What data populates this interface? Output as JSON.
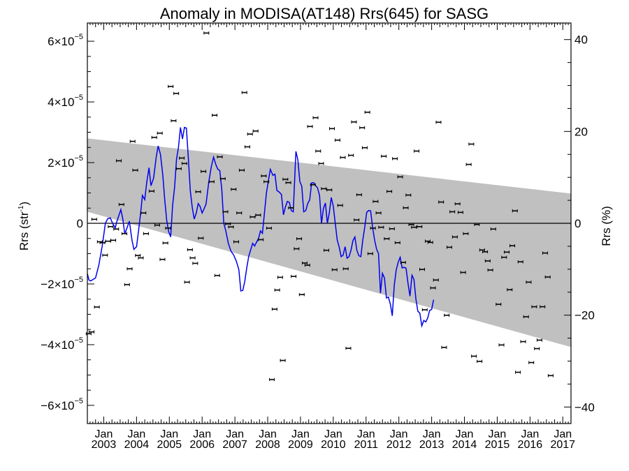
{
  "chart_data": {
    "type": "scatter",
    "title": "Anomaly in MODISA(AT148) Rrs(645) for SASG",
    "ylabel_left": "Rrs (str",
    "ylabel_left_sup": "-1",
    "ylabel_left_end": ")",
    "ylabel_right": "Rrs (%)",
    "grid": false,
    "x_range": [
      2002.5,
      2017.25
    ],
    "y_range_e5": [
      -6.6,
      6.6
    ],
    "y_right_range": [
      -43.6,
      43.6
    ],
    "y_ticks_left": [
      {
        "value": 6,
        "mantissa": "6×10",
        "exp": "−5"
      },
      {
        "value": 4,
        "mantissa": "4×10",
        "exp": "−5"
      },
      {
        "value": 2,
        "mantissa": "2×10",
        "exp": "−5"
      },
      {
        "value": 0,
        "mantissa": "0",
        "exp": ""
      },
      {
        "value": -2,
        "mantissa": "−2×10",
        "exp": "−5"
      },
      {
        "value": -4,
        "mantissa": "−4×10",
        "exp": "−5"
      },
      {
        "value": -6,
        "mantissa": "−6×10",
        "exp": "−5"
      }
    ],
    "y_ticks_right": [
      {
        "value": 40,
        "label": "40"
      },
      {
        "value": 20,
        "label": "20"
      },
      {
        "value": 0,
        "label": "0"
      },
      {
        "value": -20,
        "label": "−20"
      },
      {
        "value": -40,
        "label": "−40"
      }
    ],
    "x_ticks": [
      {
        "value": 2003,
        "month": "Jan",
        "year": "2003"
      },
      {
        "value": 2004,
        "month": "Jan",
        "year": "2004"
      },
      {
        "value": 2005,
        "month": "Jan",
        "year": "2005"
      },
      {
        "value": 2006,
        "month": "Jan",
        "year": "2006"
      },
      {
        "value": 2007,
        "month": "Jan",
        "year": "2007"
      },
      {
        "value": 2008,
        "month": "Jan",
        "year": "2008"
      },
      {
        "value": 2009,
        "month": "Jan",
        "year": "2009"
      },
      {
        "value": 2010,
        "month": "Jan",
        "year": "2010"
      },
      {
        "value": 2011,
        "month": "Jan",
        "year": "2011"
      },
      {
        "value": 2012,
        "month": "Jan",
        "year": "2012"
      },
      {
        "value": 2013,
        "month": "Jan",
        "year": "2013"
      },
      {
        "value": 2014,
        "month": "Jan",
        "year": "2014"
      },
      {
        "value": 2015,
        "month": "Jan",
        "year": "2015"
      },
      {
        "value": 2016,
        "month": "Jan",
        "year": "2016"
      },
      {
        "value": 2017,
        "month": "Jan",
        "year": "2017"
      }
    ],
    "band": {
      "upper": [
        [
          2002.5,
          2.8
        ],
        [
          2017.25,
          0.98
        ]
      ],
      "lower": [
        [
          2002.5,
          0.38
        ],
        [
          2017.25,
          -4.08
        ]
      ]
    },
    "colors": {
      "line": "#0000ee",
      "band": "#c0c0c0",
      "points": "#000000",
      "zero": "#000000"
    },
    "points_e5": [
      [
        2002.54,
        -3.64
      ],
      [
        2002.63,
        -3.58
      ],
      [
        2002.71,
        0.13
      ],
      [
        2002.79,
        -2.76
      ],
      [
        2002.88,
        -0.61
      ],
      [
        2002.96,
        -0.64
      ],
      [
        2003.04,
        -1.05
      ],
      [
        2003.13,
        -0.59
      ],
      [
        2003.21,
        -0.11
      ],
      [
        2003.29,
        -0.56
      ],
      [
        2003.38,
        -0.19
      ],
      [
        2003.46,
        2.06
      ],
      [
        2003.54,
        0.62
      ],
      [
        2003.63,
        -0.34
      ],
      [
        2003.71,
        -2.02
      ],
      [
        2003.79,
        -1.5
      ],
      [
        2003.88,
        2.7
      ],
      [
        2003.96,
        1.75
      ],
      [
        2004.04,
        -1.06
      ],
      [
        2004.13,
        -1.14
      ],
      [
        2004.21,
        0.34
      ],
      [
        2004.29,
        -0.34
      ],
      [
        2004.46,
        1.06
      ],
      [
        2004.54,
        2.83
      ],
      [
        2004.63,
        -0.06
      ],
      [
        2004.71,
        2.97
      ],
      [
        2004.79,
        -1.19
      ],
      [
        2004.88,
        -0.65
      ],
      [
        2004.96,
        -0.16
      ],
      [
        2005.04,
        4.51
      ],
      [
        2005.13,
        3.38
      ],
      [
        2005.21,
        4.28
      ],
      [
        2005.29,
        1.8
      ],
      [
        2005.38,
        2.15
      ],
      [
        2005.46,
        1.97
      ],
      [
        2005.54,
        -1.94
      ],
      [
        2005.63,
        -0.87
      ],
      [
        2005.71,
        -1.14
      ],
      [
        2005.79,
        -1.32
      ],
      [
        2005.88,
        1.04
      ],
      [
        2005.96,
        -0.49
      ],
      [
        2006.04,
        1.71
      ],
      [
        2006.13,
        6.27
      ],
      [
        2006.29,
        1.37
      ],
      [
        2006.38,
        3.56
      ],
      [
        2006.46,
        -1.72
      ],
      [
        2006.54,
        2.19
      ],
      [
        2006.63,
        1.47
      ],
      [
        2006.71,
        0.38
      ],
      [
        2006.79,
        -0.02
      ],
      [
        2006.88,
        -0.12
      ],
      [
        2006.96,
        1.12
      ],
      [
        2007.04,
        -0.61
      ],
      [
        2007.13,
        0.34
      ],
      [
        2007.21,
        1.75
      ],
      [
        2007.29,
        4.31
      ],
      [
        2007.38,
        2.52
      ],
      [
        2007.46,
        2.94
      ],
      [
        2007.54,
        0.21
      ],
      [
        2007.63,
        3.04
      ],
      [
        2007.71,
        0.27
      ],
      [
        2007.79,
        -0.54
      ],
      [
        2007.88,
        1.56
      ],
      [
        2007.96,
        1.37
      ],
      [
        2008.04,
        -0.16
      ],
      [
        2008.13,
        -5.15
      ],
      [
        2008.21,
        -2.83
      ],
      [
        2008.29,
        -2.2
      ],
      [
        2008.38,
        -1.78
      ],
      [
        2008.46,
        -4.52
      ],
      [
        2008.54,
        1.45
      ],
      [
        2008.63,
        1.34
      ],
      [
        2008.71,
        0.51
      ],
      [
        2008.79,
        -1.75
      ],
      [
        2008.88,
        -0.84
      ],
      [
        2008.96,
        -0.51
      ],
      [
        2009.04,
        -2.35
      ],
      [
        2009.13,
        -1.31
      ],
      [
        2009.21,
        -1.38
      ],
      [
        2009.29,
        3.19
      ],
      [
        2009.38,
        1.27
      ],
      [
        2009.46,
        3.48
      ],
      [
        2009.54,
        2.38
      ],
      [
        2009.63,
        1.97
      ],
      [
        2009.71,
        1.14
      ],
      [
        2009.79,
        -0.89
      ],
      [
        2009.88,
        1.1
      ],
      [
        2009.96,
        3.12
      ],
      [
        2010.04,
        -1.53
      ],
      [
        2010.13,
        2.74
      ],
      [
        2010.21,
        0.59
      ],
      [
        2010.29,
        2.17
      ],
      [
        2010.38,
        -1.5
      ],
      [
        2010.46,
        -4.12
      ],
      [
        2010.54,
        2.24
      ],
      [
        2010.63,
        3.34
      ],
      [
        2010.71,
        0.11
      ],
      [
        2010.79,
        0.94
      ],
      [
        2010.88,
        3.15
      ],
      [
        2010.96,
        2.49
      ],
      [
        2011.04,
        3.66
      ],
      [
        2011.13,
        -1.0
      ],
      [
        2011.21,
        -0.16
      ],
      [
        2011.29,
        0.72
      ],
      [
        2011.38,
        0.34
      ],
      [
        2011.46,
        -0.13
      ],
      [
        2011.54,
        2.21
      ],
      [
        2011.63,
        -0.51
      ],
      [
        2011.71,
        1.05
      ],
      [
        2011.79,
        -0.18
      ],
      [
        2011.88,
        2.13
      ],
      [
        2011.96,
        -0.64
      ],
      [
        2012.04,
        1.53
      ],
      [
        2012.13,
        -1.29
      ],
      [
        2012.21,
        0.51
      ],
      [
        2012.29,
        0.93
      ],
      [
        2012.38,
        -0.04
      ],
      [
        2012.46,
        -0.13
      ],
      [
        2012.54,
        2.38
      ],
      [
        2012.63,
        -0.11
      ],
      [
        2012.71,
        -1.52
      ],
      [
        2012.79,
        -2.85
      ],
      [
        2012.88,
        -0.59
      ],
      [
        2012.96,
        -0.63
      ],
      [
        2013.04,
        -2.13
      ],
      [
        2013.13,
        -1.87
      ],
      [
        2013.21,
        3.33
      ],
      [
        2013.29,
        0.7
      ],
      [
        2013.38,
        -4.09
      ],
      [
        2013.46,
        -3.03
      ],
      [
        2013.54,
        -0.79
      ],
      [
        2013.63,
        0.38
      ],
      [
        2013.71,
        -0.45
      ],
      [
        2013.79,
        0.64
      ],
      [
        2013.88,
        0.36
      ],
      [
        2013.96,
        -1.62
      ],
      [
        2014.04,
        -0.34
      ],
      [
        2014.13,
        1.94
      ],
      [
        2014.21,
        2.61
      ],
      [
        2014.29,
        -4.38
      ],
      [
        2014.38,
        -0.04
      ],
      [
        2014.46,
        -4.55
      ],
      [
        2014.54,
        -0.88
      ],
      [
        2014.63,
        -0.94
      ],
      [
        2014.71,
        -1.24
      ],
      [
        2014.79,
        -1.54
      ],
      [
        2014.88,
        -0.19
      ],
      [
        2015.04,
        -2.67
      ],
      [
        2015.13,
        -4.01
      ],
      [
        2015.21,
        -1.12
      ],
      [
        2015.29,
        -0.95
      ],
      [
        2015.38,
        -2.19
      ],
      [
        2015.46,
        -0.74
      ],
      [
        2015.54,
        0.41
      ],
      [
        2015.63,
        -4.91
      ],
      [
        2015.71,
        -1.27
      ],
      [
        2015.79,
        -3.9
      ],
      [
        2015.88,
        -3.08
      ],
      [
        2015.96,
        -1.94
      ],
      [
        2016.04,
        -4.59
      ],
      [
        2016.13,
        -2.75
      ],
      [
        2016.21,
        -4.13
      ],
      [
        2016.29,
        -3.85
      ],
      [
        2016.38,
        -2.75
      ],
      [
        2016.46,
        -0.98
      ],
      [
        2016.54,
        -1.77
      ],
      [
        2016.63,
        -5.02
      ]
    ],
    "smoothed_e5": [
      [
        2002.5,
        -1.66
      ],
      [
        2002.55,
        -1.87
      ],
      [
        2002.6,
        -1.9
      ],
      [
        2002.75,
        -1.8
      ],
      [
        2002.85,
        -1.38
      ],
      [
        2002.95,
        -0.77
      ],
      [
        2003.05,
        0.0
      ],
      [
        2003.12,
        0.15
      ],
      [
        2003.2,
        0.18
      ],
      [
        2003.27,
        0.0
      ],
      [
        2003.35,
        -0.15
      ],
      [
        2003.4,
        0.06
      ],
      [
        2003.46,
        0.25
      ],
      [
        2003.52,
        0.45
      ],
      [
        2003.58,
        0.15
      ],
      [
        2003.64,
        -0.35
      ],
      [
        2003.7,
        -0.18
      ],
      [
        2003.78,
        0.07
      ],
      [
        2003.86,
        -0.55
      ],
      [
        2003.92,
        -0.86
      ],
      [
        2004.0,
        -0.77
      ],
      [
        2004.06,
        -0.25
      ],
      [
        2004.12,
        0.29
      ],
      [
        2004.18,
        0.92
      ],
      [
        2004.25,
        0.78
      ],
      [
        2004.31,
        1.34
      ],
      [
        2004.38,
        1.83
      ],
      [
        2004.44,
        1.24
      ],
      [
        2004.52,
        1.49
      ],
      [
        2004.6,
        2.18
      ],
      [
        2004.66,
        2.55
      ],
      [
        2004.73,
        2.27
      ],
      [
        2004.8,
        1.6
      ],
      [
        2004.86,
        0.78
      ],
      [
        2004.92,
        0.1
      ],
      [
        2004.98,
        -0.27
      ],
      [
        2005.04,
        -0.45
      ],
      [
        2005.1,
        0.6
      ],
      [
        2005.16,
        1.18
      ],
      [
        2005.22,
        2.12
      ],
      [
        2005.28,
        2.51
      ],
      [
        2005.34,
        3.16
      ],
      [
        2005.4,
        2.78
      ],
      [
        2005.46,
        3.16
      ],
      [
        2005.52,
        3.14
      ],
      [
        2005.58,
        2.14
      ],
      [
        2005.64,
        1.07
      ],
      [
        2005.7,
        0.52
      ],
      [
        2005.76,
        0.14
      ],
      [
        2005.82,
        0.33
      ],
      [
        2005.88,
        0.65
      ],
      [
        2005.94,
        0.55
      ],
      [
        2006.0,
        0.34
      ],
      [
        2006.05,
        0.45
      ],
      [
        2006.12,
        0.63
      ],
      [
        2006.2,
        1.34
      ],
      [
        2006.28,
        1.86
      ],
      [
        2006.35,
        2.18
      ],
      [
        2006.42,
        1.93
      ],
      [
        2006.48,
        1.78
      ],
      [
        2006.54,
        1.74
      ],
      [
        2006.6,
        1.1
      ],
      [
        2006.66,
        0.0
      ],
      [
        2006.72,
        -0.24
      ],
      [
        2006.8,
        -0.66
      ],
      [
        2006.88,
        -0.92
      ],
      [
        2006.96,
        -1.04
      ],
      [
        2007.04,
        -1.24
      ],
      [
        2007.12,
        -1.52
      ],
      [
        2007.18,
        -2.23
      ],
      [
        2007.24,
        -2.21
      ],
      [
        2007.3,
        -1.92
      ],
      [
        2007.36,
        -1.48
      ],
      [
        2007.42,
        -1.1
      ],
      [
        2007.48,
        -0.88
      ],
      [
        2007.54,
        -0.66
      ],
      [
        2007.6,
        -0.75
      ],
      [
        2007.66,
        -0.62
      ],
      [
        2007.72,
        -0.5
      ],
      [
        2007.78,
        -0.25
      ],
      [
        2007.84,
        -0.33
      ],
      [
        2007.9,
        0.32
      ],
      [
        2007.96,
        1.0
      ],
      [
        2008.02,
        1.4
      ],
      [
        2008.08,
        1.78
      ],
      [
        2008.16,
        1.58
      ],
      [
        2008.22,
        1.62
      ],
      [
        2008.28,
        1.08
      ],
      [
        2008.35,
        1.03
      ],
      [
        2008.42,
        0.95
      ],
      [
        2008.48,
        0.28
      ],
      [
        2008.54,
        0.54
      ],
      [
        2008.6,
        0.72
      ],
      [
        2008.66,
        0.69
      ],
      [
        2008.72,
        0.42
      ],
      [
        2008.78,
        0.38
      ],
      [
        2008.86,
        2.37
      ],
      [
        2008.92,
        2.09
      ],
      [
        2008.98,
        1.38
      ],
      [
        2009.04,
        1.22
      ],
      [
        2009.1,
        0.38
      ],
      [
        2009.16,
        0.42
      ],
      [
        2009.22,
        0.65
      ],
      [
        2009.28,
        0.77
      ],
      [
        2009.34,
        1.33
      ],
      [
        2009.4,
        1.34
      ],
      [
        2009.46,
        1.24
      ],
      [
        2009.52,
        1.17
      ],
      [
        2009.58,
        0.92
      ],
      [
        2009.64,
        0.0
      ],
      [
        2009.7,
        0.49
      ],
      [
        2009.76,
        0.67
      ],
      [
        2009.82,
        0.0
      ],
      [
        2009.88,
        0.35
      ],
      [
        2009.94,
        0.85
      ],
      [
        2010.0,
        0.56
      ],
      [
        2010.06,
        0.0
      ],
      [
        2010.12,
        -0.55
      ],
      [
        2010.18,
        -0.78
      ],
      [
        2010.24,
        -1.1
      ],
      [
        2010.3,
        -1.05
      ],
      [
        2010.36,
        -0.77
      ],
      [
        2010.42,
        -1.15
      ],
      [
        2010.48,
        -1.1
      ],
      [
        2010.54,
        -0.89
      ],
      [
        2010.6,
        -0.57
      ],
      [
        2010.66,
        -0.45
      ],
      [
        2010.72,
        -0.89
      ],
      [
        2010.78,
        -1.07
      ],
      [
        2010.84,
        -1.1
      ],
      [
        2010.9,
        -0.55
      ],
      [
        2010.96,
        -0.13
      ],
      [
        2011.02,
        0.36
      ],
      [
        2011.08,
        0.42
      ],
      [
        2011.14,
        0.41
      ],
      [
        2011.2,
        -0.15
      ],
      [
        2011.26,
        -0.55
      ],
      [
        2011.32,
        -0.85
      ],
      [
        2011.38,
        -1.0
      ],
      [
        2011.44,
        -2.3
      ],
      [
        2011.5,
        -1.65
      ],
      [
        2011.56,
        -1.8
      ],
      [
        2011.62,
        -2.46
      ],
      [
        2011.68,
        -2.43
      ],
      [
        2011.74,
        -2.66
      ],
      [
        2011.8,
        -3.05
      ],
      [
        2011.86,
        -2.05
      ],
      [
        2011.92,
        -1.54
      ],
      [
        2011.98,
        -1.28
      ],
      [
        2012.04,
        -1.12
      ],
      [
        2012.1,
        -1.47
      ],
      [
        2012.16,
        -1.45
      ],
      [
        2012.22,
        -1.48
      ],
      [
        2012.28,
        -1.98
      ],
      [
        2012.34,
        -2.4
      ],
      [
        2012.4,
        -1.71
      ],
      [
        2012.46,
        -1.85
      ],
      [
        2012.52,
        -2.5
      ],
      [
        2012.58,
        -2.9
      ],
      [
        2012.64,
        -2.96
      ],
      [
        2012.7,
        -3.38
      ],
      [
        2012.76,
        -3.2
      ],
      [
        2012.82,
        -3.25
      ],
      [
        2012.88,
        -3.12
      ],
      [
        2012.94,
        -2.87
      ],
      [
        2013.0,
        -2.84
      ],
      [
        2013.06,
        -2.52
      ]
    ]
  }
}
